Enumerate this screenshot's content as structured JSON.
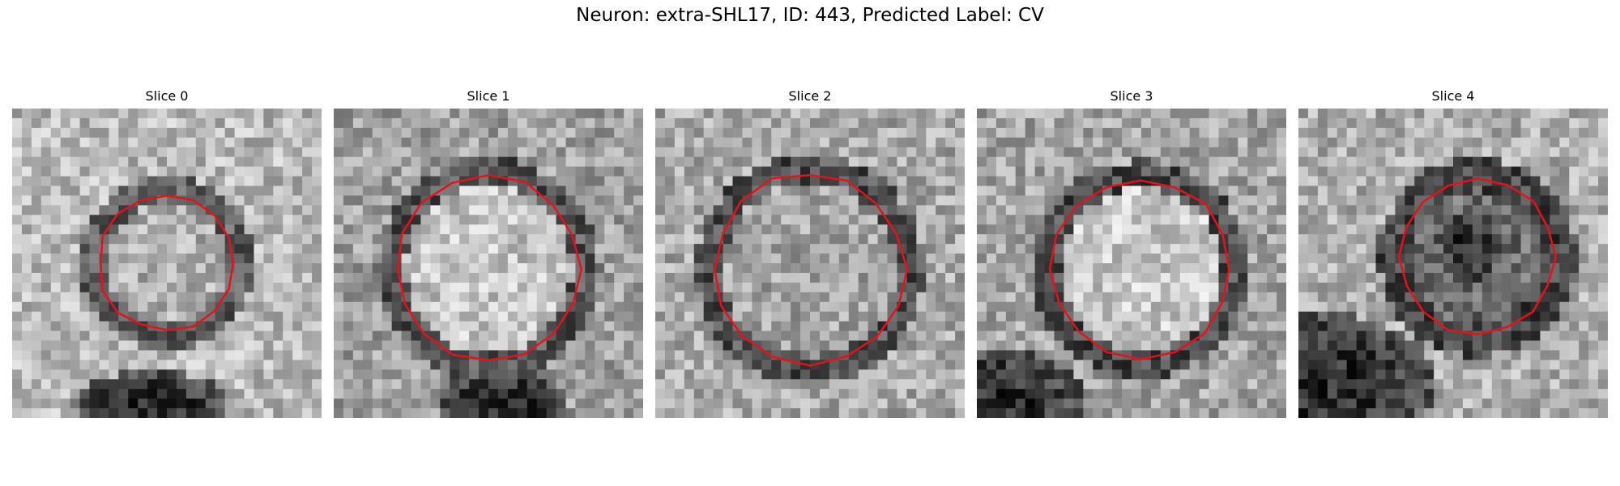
{
  "figure": {
    "title": "Neuron: extra-SHL17, ID: 443, Predicted Label: CV"
  },
  "colors": {
    "contour": "#e8111b",
    "background": "#ffffff"
  },
  "panels": [
    {
      "title": "Slice 0"
    },
    {
      "title": "Slice 1"
    },
    {
      "title": "Slice 2"
    },
    {
      "title": "Slice 3"
    },
    {
      "title": "Slice 4"
    }
  ]
}
